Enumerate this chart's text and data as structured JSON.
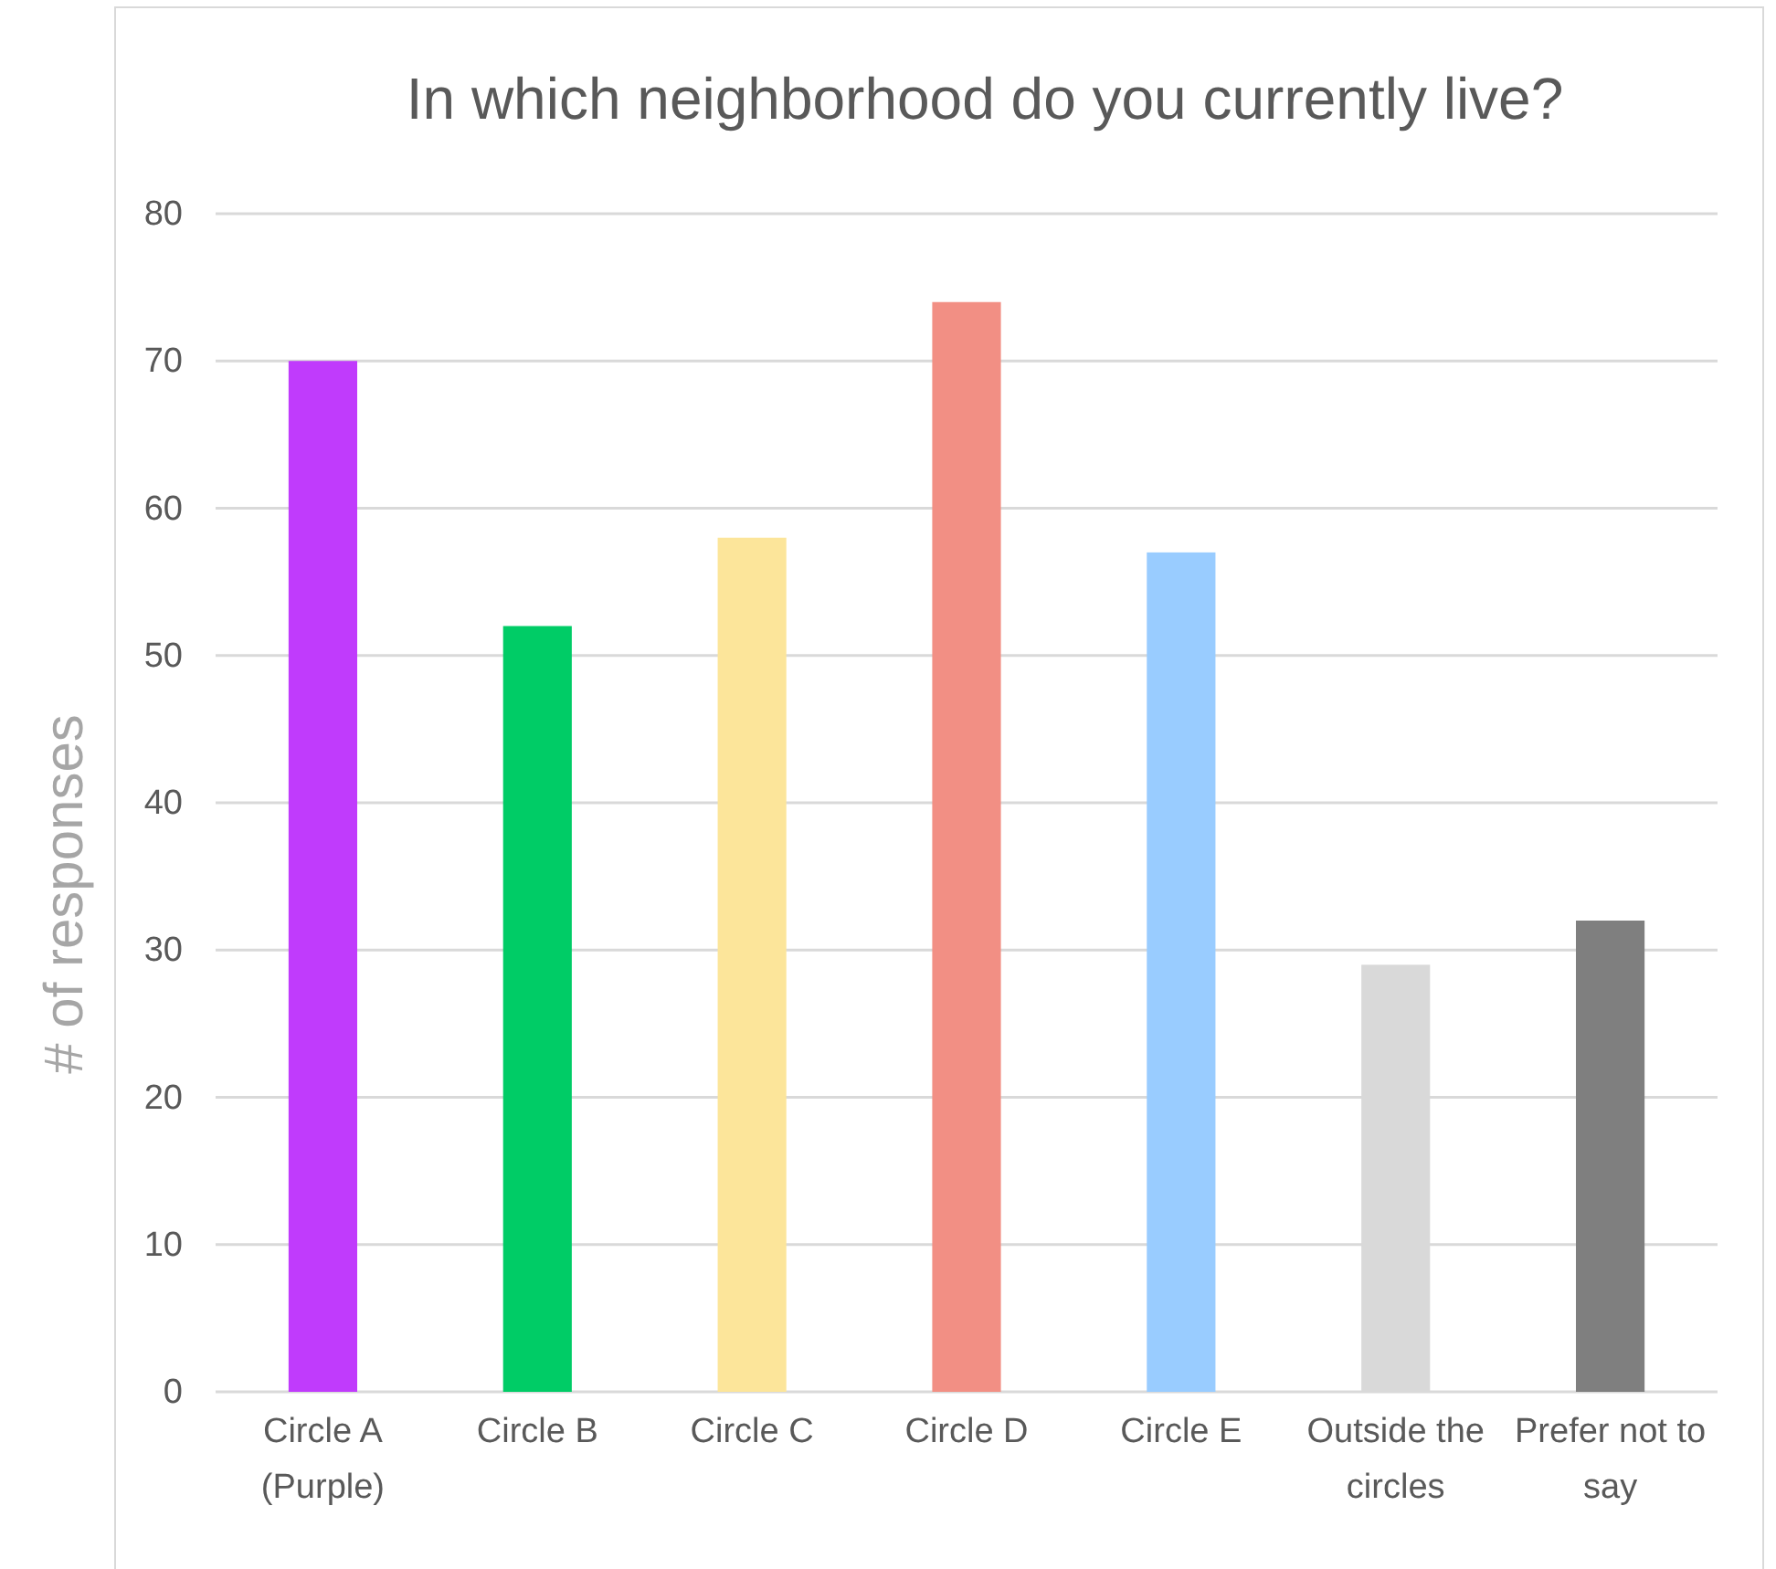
{
  "chart_data": {
    "type": "bar",
    "title": "In which neighborhood do you currently live?",
    "ylabel": "# of responses",
    "categories": [
      "Circle A (Purple)",
      "Circle B",
      "Circle C",
      "Circle D",
      "Circle E",
      "Outside the circles",
      "Prefer not to say"
    ],
    "values": [
      70,
      52,
      58,
      74,
      57,
      29,
      32
    ],
    "colors": [
      "#c03bfc",
      "#00cc66",
      "#fce59a",
      "#f28f84",
      "#99ccff",
      "#d9d9d9",
      "#7f7f7f"
    ],
    "ylim": [
      0,
      80
    ],
    "yticks": [
      0,
      10,
      20,
      30,
      40,
      50,
      60,
      70,
      80
    ],
    "grid": "y"
  }
}
